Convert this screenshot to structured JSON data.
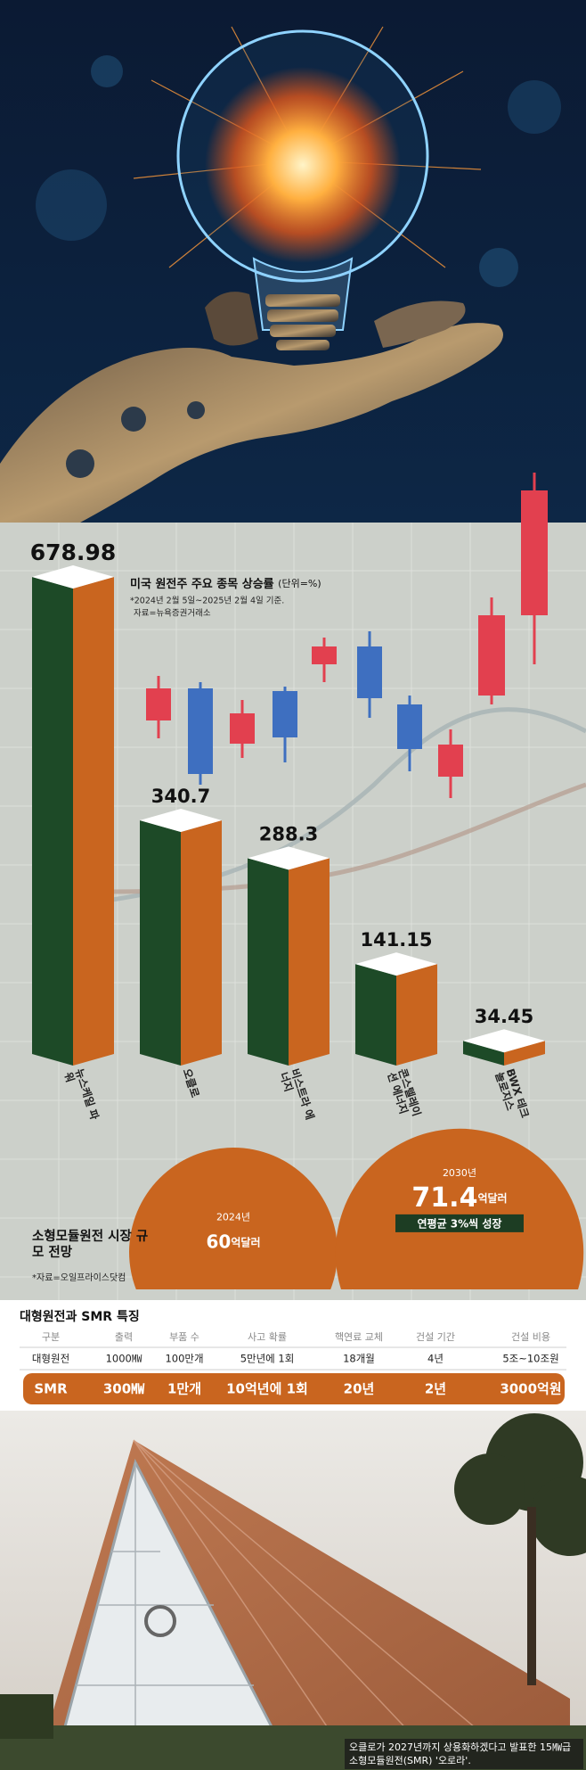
{
  "chart_data": [
    {
      "type": "bar",
      "title": "미국 원전주 주요 종목 상승률",
      "unit": "(단위=%)",
      "note": "*2024년 2월 5일~2025년 2월 4일 기준.",
      "source": "자료=뉴욕증권거래소",
      "categories": [
        "뉴스케일 파워",
        "오클로",
        "비스트라 에너지",
        "콘스텔레이션 에너지",
        "BWX 테크놀로지스"
      ],
      "values": [
        678.98,
        340.7,
        288.3,
        141.15,
        34.45
      ],
      "color": "#c9651f",
      "side_color": "#1d4a27",
      "top_color": "#ffffff"
    },
    {
      "type": "bubble",
      "title": "소형모듈원전 시장 규모 전망",
      "source": "*자료=오일프라이스닷컴",
      "categories": [
        "2024년",
        "2030년"
      ],
      "values": [
        60,
        71.4
      ],
      "unit": "억달러",
      "annotation": "연평균 3%씩 성장",
      "color": "#c9651f"
    }
  ],
  "table": {
    "title": "대형원전과 SMR 특징",
    "header": [
      "구분",
      "출력",
      "부품 수",
      "사고 확률",
      "핵연료 교체",
      "건설 기간",
      "건설 비용"
    ],
    "rows": [
      [
        "대형원전",
        "1000㎿",
        "100만개",
        "5만년에 1회",
        "18개월",
        "4년",
        "5조~10조원"
      ],
      [
        "SMR",
        "300㎿",
        "1만개",
        "10억년에 1회",
        "20년",
        "2년",
        "3000억원"
      ]
    ]
  },
  "caption": "오클로가 2027년까지 상용화하겠다고 발표한 15㎿급 소형모듈원전(SMR) '오로라'."
}
